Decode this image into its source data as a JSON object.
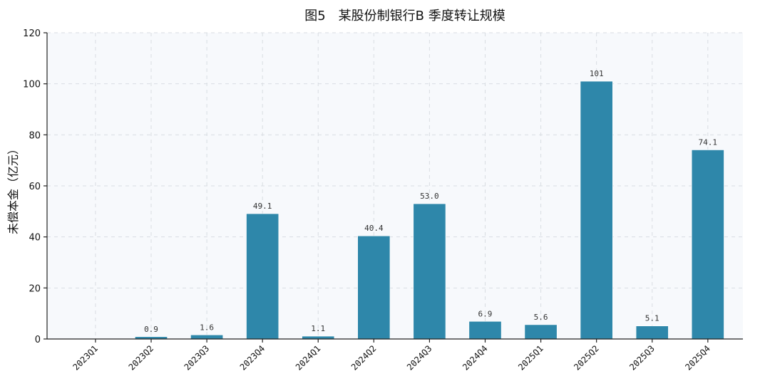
{
  "chart_data": {
    "type": "bar",
    "title": "图5　某股份制银行B 季度转让规模",
    "xlabel": "",
    "ylabel": "未偿本金（亿元）",
    "categories": [
      "2023Q1",
      "2023Q2",
      "2023Q3",
      "2023Q4",
      "2024Q1",
      "2024Q2",
      "2024Q3",
      "2024Q4",
      "2025Q1",
      "2025Q2",
      "2025Q3",
      "2025Q4"
    ],
    "values": [
      0,
      0.9,
      1.6,
      49.1,
      1.1,
      40.4,
      53.0,
      6.9,
      5.6,
      101,
      5.1,
      74.1
    ],
    "data_labels": [
      "",
      "0.9",
      "1.6",
      "49.1",
      "1.1",
      "40.4",
      "53.0",
      "6.9",
      "5.6",
      "101",
      "5.1",
      "74.1"
    ],
    "ylim": [
      0,
      120
    ],
    "yticks": [
      0,
      20,
      40,
      60,
      80,
      100,
      120
    ],
    "grid": true,
    "bar_color": "#2e87aa",
    "plot_background": "#f7f9fc"
  }
}
